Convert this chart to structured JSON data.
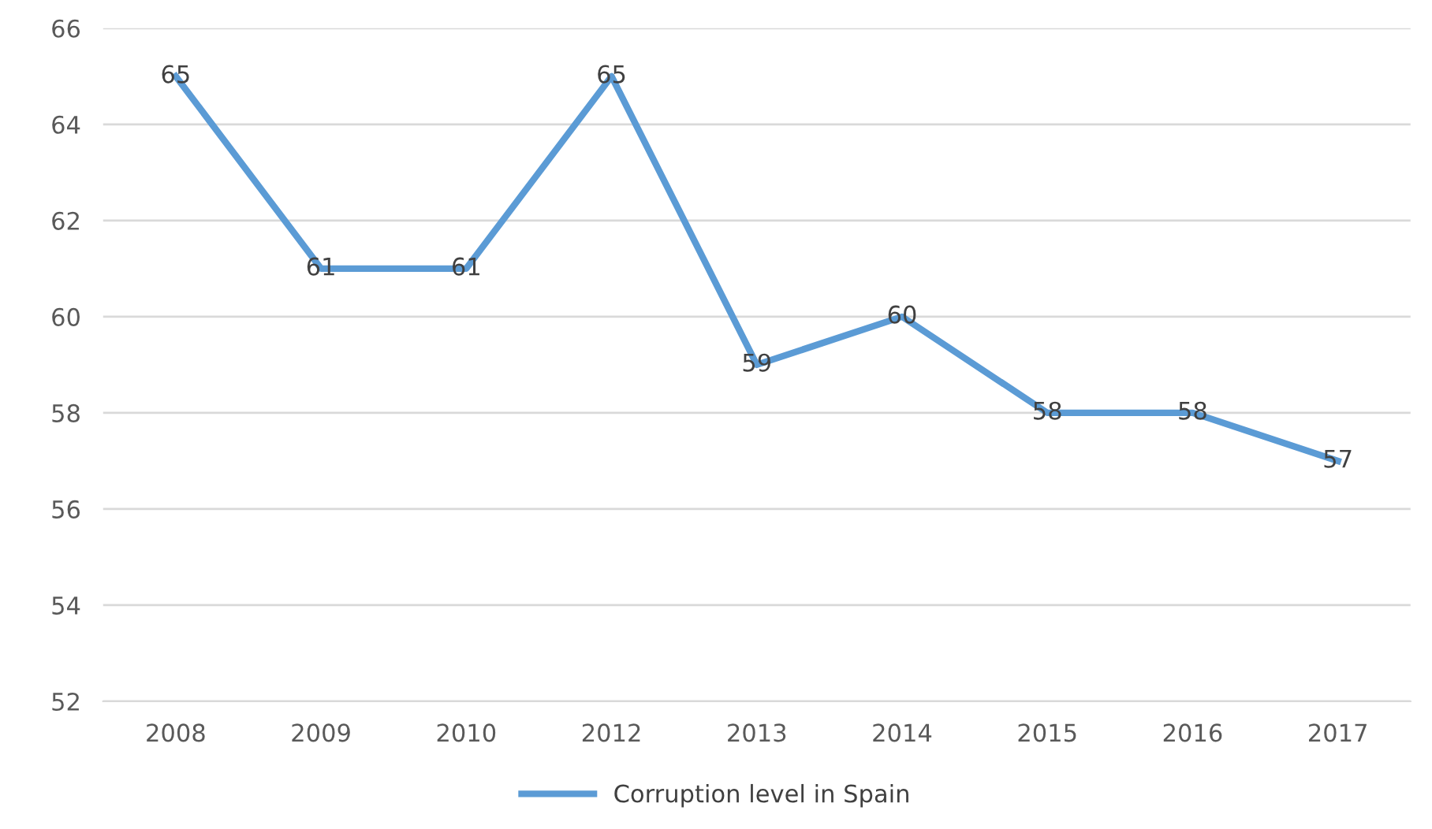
{
  "chart_data": {
    "type": "line",
    "categories": [
      "2008",
      "2009",
      "2010",
      "2012",
      "2013",
      "2014",
      "2015",
      "2016",
      "2017"
    ],
    "series": [
      {
        "name": "Corruption level in Spain",
        "color": "#5b9bd5",
        "values": [
          65,
          61,
          61,
          65,
          59,
          60,
          58,
          58,
          57
        ]
      }
    ],
    "ylim": [
      52,
      66
    ],
    "yticks": [
      52,
      54,
      56,
      58,
      60,
      62,
      64,
      66
    ],
    "grid": "y",
    "legend": "bottom",
    "data_labels": true,
    "marker": "none",
    "line_style": "solid"
  }
}
